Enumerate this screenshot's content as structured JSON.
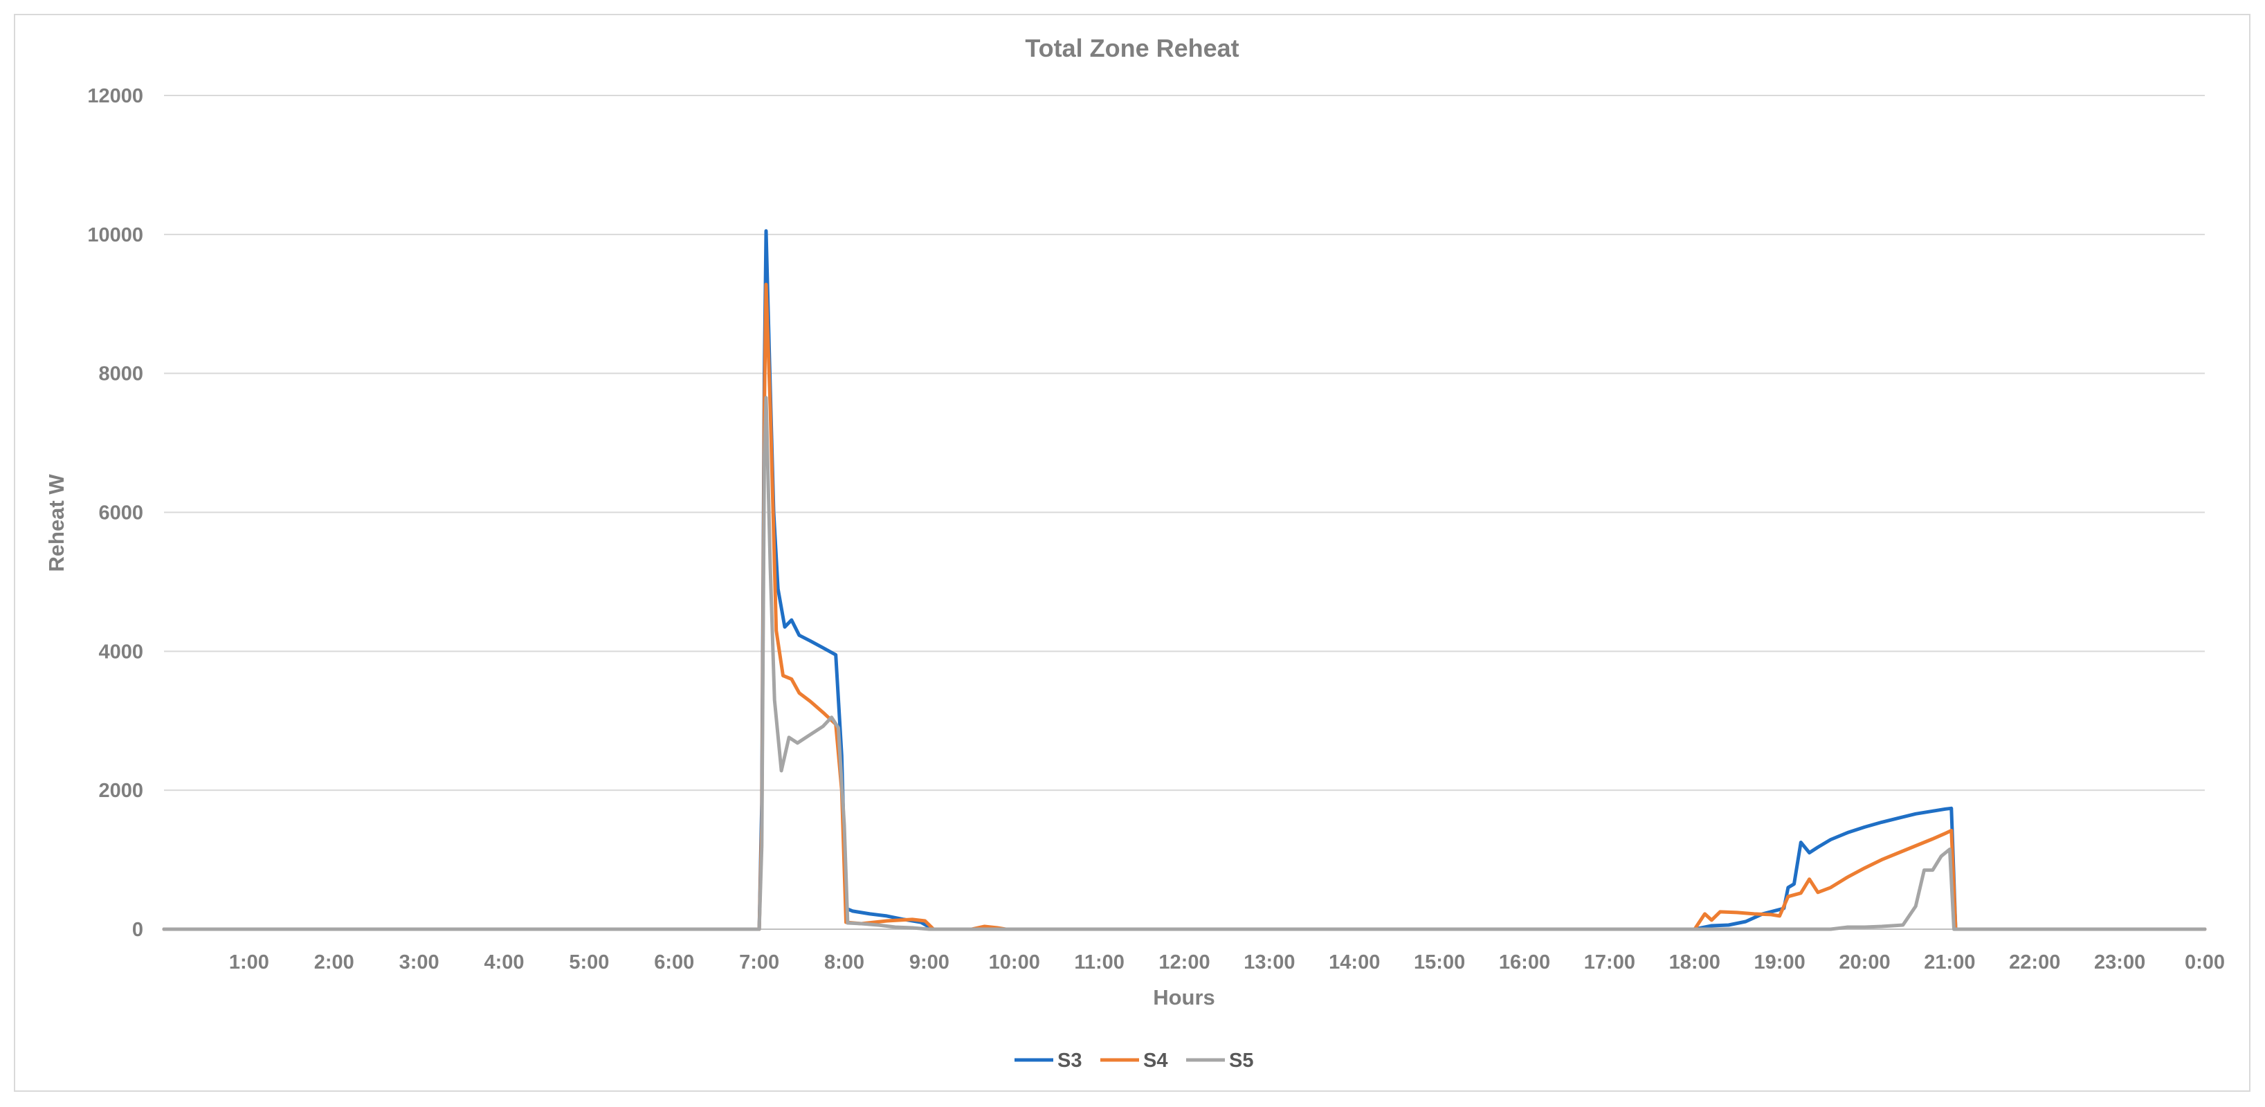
{
  "chart_data": {
    "type": "line",
    "title": "Total Zone Reheat",
    "xlabel": "Hours",
    "ylabel": "Reheat W",
    "xlim": [
      0,
      24
    ],
    "ylim": [
      0,
      12000
    ],
    "yticks": [
      0,
      2000,
      4000,
      6000,
      8000,
      10000,
      12000
    ],
    "y_tick_labels": [
      "0",
      "2000",
      "4000",
      "6000",
      "8000",
      "10000",
      "12000"
    ],
    "x_tick_labels": [
      "1:00",
      "2:00",
      "3:00",
      "4:00",
      "5:00",
      "6:00",
      "7:00",
      "8:00",
      "9:00",
      "10:00",
      "11:00",
      "12:00",
      "13:00",
      "14:00",
      "15:00",
      "16:00",
      "17:00",
      "18:00",
      "19:00",
      "20:00",
      "21:00",
      "22:00",
      "23:00",
      "0:00"
    ],
    "grid": "horizontal",
    "legend_position": "bottom",
    "series": [
      {
        "name": "S3",
        "color": "#1f6fc5",
        "points": [
          [
            0,
            0
          ],
          [
            7.0,
            0
          ],
          [
            7.03,
            1800
          ],
          [
            7.06,
            8000
          ],
          [
            7.08,
            10050
          ],
          [
            7.12,
            8200
          ],
          [
            7.17,
            6000
          ],
          [
            7.22,
            4900
          ],
          [
            7.3,
            4350
          ],
          [
            7.38,
            4450
          ],
          [
            7.47,
            4230
          ],
          [
            7.6,
            4150
          ],
          [
            7.75,
            4050
          ],
          [
            7.9,
            3950
          ],
          [
            7.97,
            2500
          ],
          [
            8.02,
            300
          ],
          [
            8.1,
            260
          ],
          [
            8.3,
            220
          ],
          [
            8.5,
            190
          ],
          [
            8.7,
            140
          ],
          [
            8.9,
            100
          ],
          [
            9.0,
            30
          ],
          [
            9.05,
            0
          ],
          [
            18.0,
            0
          ],
          [
            18.2,
            50
          ],
          [
            18.4,
            60
          ],
          [
            18.6,
            110
          ],
          [
            18.8,
            220
          ],
          [
            19.05,
            300
          ],
          [
            19.1,
            600
          ],
          [
            19.17,
            650
          ],
          [
            19.25,
            1250
          ],
          [
            19.35,
            1100
          ],
          [
            19.45,
            1180
          ],
          [
            19.6,
            1290
          ],
          [
            19.8,
            1390
          ],
          [
            20.0,
            1470
          ],
          [
            20.2,
            1540
          ],
          [
            20.4,
            1600
          ],
          [
            20.6,
            1660
          ],
          [
            20.8,
            1700
          ],
          [
            20.95,
            1730
          ],
          [
            21.02,
            1740
          ],
          [
            21.07,
            0
          ],
          [
            24,
            0
          ]
        ]
      },
      {
        "name": "S4",
        "color": "#ed7d31",
        "points": [
          [
            0,
            0
          ],
          [
            7.0,
            0
          ],
          [
            7.03,
            1500
          ],
          [
            7.06,
            7500
          ],
          [
            7.08,
            9280
          ],
          [
            7.13,
            7500
          ],
          [
            7.2,
            4300
          ],
          [
            7.28,
            3650
          ],
          [
            7.38,
            3600
          ],
          [
            7.47,
            3400
          ],
          [
            7.6,
            3280
          ],
          [
            7.75,
            3120
          ],
          [
            7.9,
            2950
          ],
          [
            7.97,
            2000
          ],
          [
            8.02,
            100
          ],
          [
            8.2,
            80
          ],
          [
            8.5,
            120
          ],
          [
            8.8,
            140
          ],
          [
            8.95,
            120
          ],
          [
            9.05,
            0
          ],
          [
            9.5,
            0
          ],
          [
            9.65,
            40
          ],
          [
            9.8,
            20
          ],
          [
            9.9,
            0
          ],
          [
            18.0,
            0
          ],
          [
            18.12,
            220
          ],
          [
            18.2,
            130
          ],
          [
            18.3,
            250
          ],
          [
            18.5,
            240
          ],
          [
            18.7,
            220
          ],
          [
            18.9,
            210
          ],
          [
            19.0,
            190
          ],
          [
            19.1,
            470
          ],
          [
            19.25,
            520
          ],
          [
            19.35,
            720
          ],
          [
            19.45,
            530
          ],
          [
            19.6,
            600
          ],
          [
            19.8,
            750
          ],
          [
            20.0,
            880
          ],
          [
            20.2,
            1000
          ],
          [
            20.4,
            1100
          ],
          [
            20.6,
            1200
          ],
          [
            20.8,
            1300
          ],
          [
            20.95,
            1380
          ],
          [
            21.02,
            1420
          ],
          [
            21.07,
            0
          ],
          [
            24,
            0
          ]
        ]
      },
      {
        "name": "S5",
        "color": "#a5a5a5",
        "points": [
          [
            0,
            0
          ],
          [
            7.0,
            0
          ],
          [
            7.03,
            1200
          ],
          [
            7.06,
            6800
          ],
          [
            7.08,
            7650
          ],
          [
            7.13,
            5200
          ],
          [
            7.18,
            3300
          ],
          [
            7.26,
            2280
          ],
          [
            7.35,
            2760
          ],
          [
            7.45,
            2680
          ],
          [
            7.6,
            2800
          ],
          [
            7.75,
            2920
          ],
          [
            7.85,
            3050
          ],
          [
            7.93,
            2900
          ],
          [
            8.0,
            1500
          ],
          [
            8.04,
            90
          ],
          [
            8.2,
            80
          ],
          [
            8.4,
            60
          ],
          [
            8.6,
            30
          ],
          [
            8.8,
            20
          ],
          [
            9.0,
            0
          ],
          [
            19.0,
            0
          ],
          [
            19.6,
            0
          ],
          [
            19.8,
            30
          ],
          [
            20.0,
            30
          ],
          [
            20.2,
            40
          ],
          [
            20.45,
            60
          ],
          [
            20.6,
            330
          ],
          [
            20.7,
            850
          ],
          [
            20.8,
            850
          ],
          [
            20.9,
            1050
          ],
          [
            21.0,
            1150
          ],
          [
            21.05,
            0
          ],
          [
            24,
            0
          ]
        ]
      }
    ]
  }
}
